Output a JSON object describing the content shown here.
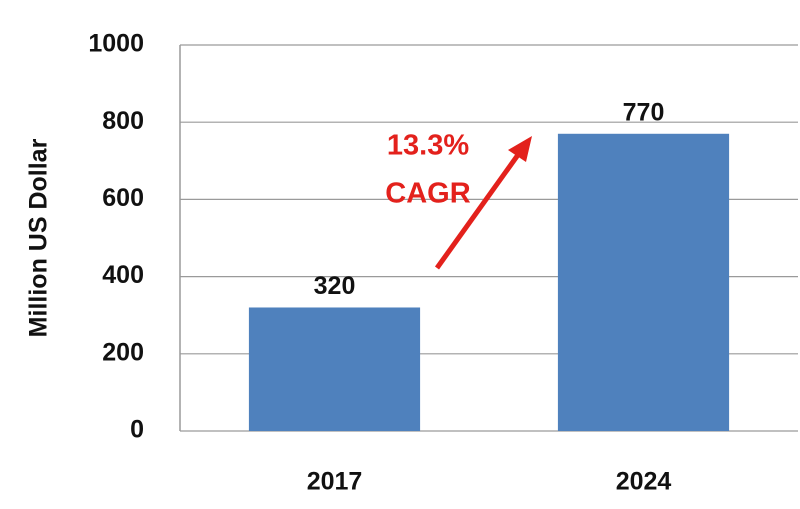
{
  "chart_data": {
    "type": "bar",
    "y_label": "Million US Dollar",
    "categories": [
      "2017",
      "2024"
    ],
    "values": [
      320,
      770
    ],
    "color": "#4f81bd",
    "ylim": [
      0,
      1000
    ],
    "yticks": [
      0,
      200,
      400,
      600,
      800,
      1000
    ],
    "grid": true,
    "annotations": [
      "13.3%",
      "CAGR"
    ],
    "annotation_color": "#e3211c"
  }
}
